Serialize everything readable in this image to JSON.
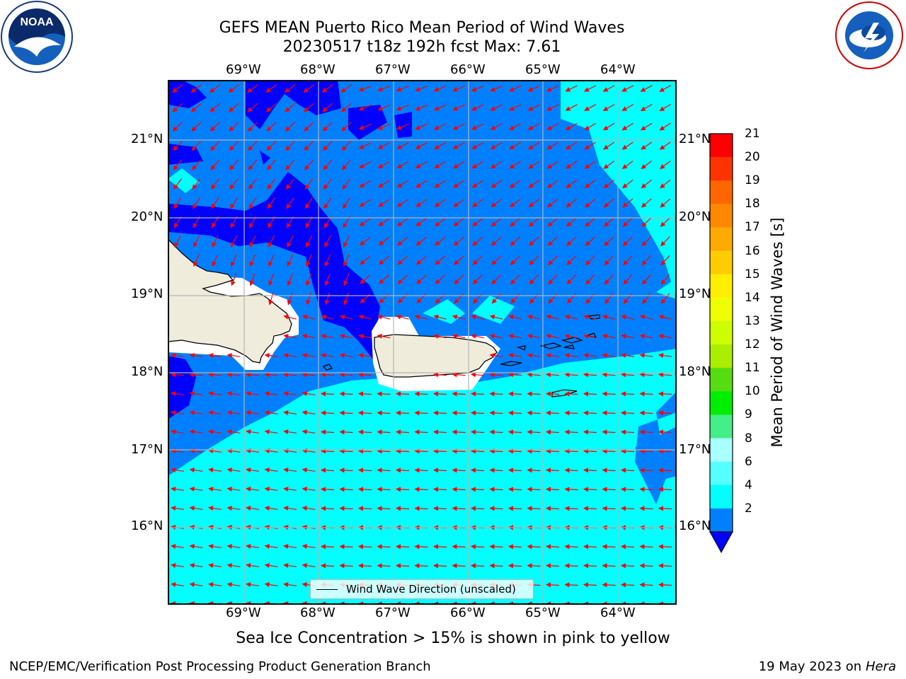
{
  "title_line1": "GEFS MEAN Puerto Rico Mean Period of Wind Waves",
  "title_line2": "20230517 t18z 192h fcst   Max: 7.61",
  "lon_ticks": [
    "69°W",
    "68°W",
    "67°W",
    "66°W",
    "65°W",
    "64°W"
  ],
  "lat_ticks": [
    "21°N",
    "20°N",
    "19°N",
    "18°N",
    "17°N",
    "16°N"
  ],
  "legend_label": "Wind Wave Direction (unscaled)",
  "colorbar": {
    "label": "Mean Period of Wind Waves [s]",
    "ticks": [
      "21",
      "20",
      "19",
      "18",
      "17",
      "16",
      "15",
      "14",
      "13",
      "12",
      "11",
      "10",
      "9",
      "8",
      "6",
      "4",
      "2"
    ],
    "colors": [
      "#ff0000",
      "#ff3300",
      "#ff6600",
      "#ff8800",
      "#ffaa00",
      "#ffcc00",
      "#ffee00",
      "#eeff00",
      "#ccff00",
      "#aaee00",
      "#55dd11",
      "#00ee00",
      "#44ee88",
      "#aaffff",
      "#55ffff",
      "#00ffff",
      "#0080ff"
    ],
    "under_color": "#0000ff"
  },
  "map_colors": {
    "deep": "#0000ff",
    "mid": "#0080ff",
    "light": "#00ffff",
    "land": "#f0ecdc",
    "white_gap": "#ffffff",
    "arrow": "#ff0000",
    "grid": "#b3b3b3"
  },
  "note": "Sea Ice Concentration > 15% is shown in pink to yellow",
  "footer_left": "NCEP/EMC/Verification Post Processing Product Generation Branch",
  "footer_right_date": "19 May 2023 on",
  "footer_right_host": "Hera",
  "logos": {
    "left": "noaa-logo",
    "right": "nws-logo"
  }
}
